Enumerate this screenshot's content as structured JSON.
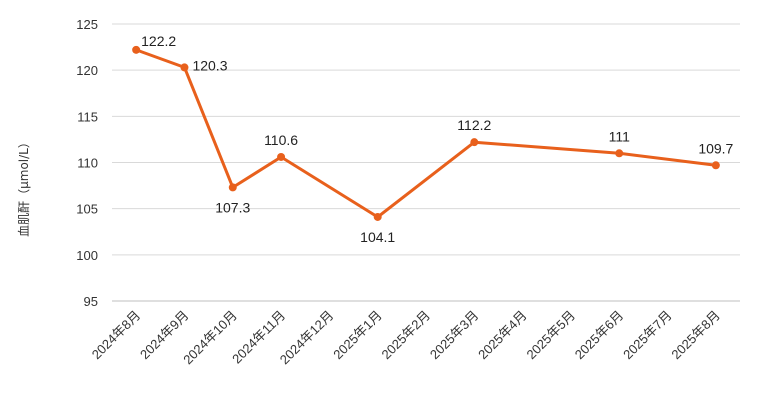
{
  "chart_data": {
    "type": "line",
    "title": "",
    "xlabel": "",
    "ylabel": "血肌酐（μmol/L）",
    "ylim": [
      95,
      125
    ],
    "yticks": [
      95,
      100,
      105,
      110,
      115,
      120,
      125
    ],
    "grid": true,
    "categories": [
      "2024年8月",
      "2024年9月",
      "2024年10月",
      "2024年11月",
      "2024年12月",
      "2025年1月",
      "2025年2月",
      "2025年3月",
      "2025年4月",
      "2025年5月",
      "2025年6月",
      "2025年7月",
      "2025年8月"
    ],
    "series": [
      {
        "color": "#E8601C",
        "values": [
          122.2,
          120.3,
          107.3,
          110.6,
          null,
          104.1,
          null,
          112.2,
          null,
          null,
          111,
          null,
          109.7
        ],
        "labels": [
          "122.2",
          "120.3",
          "107.3",
          "110.6",
          null,
          "104.1",
          null,
          "112.2",
          null,
          null,
          "111",
          null,
          "109.7"
        ]
      }
    ]
  }
}
